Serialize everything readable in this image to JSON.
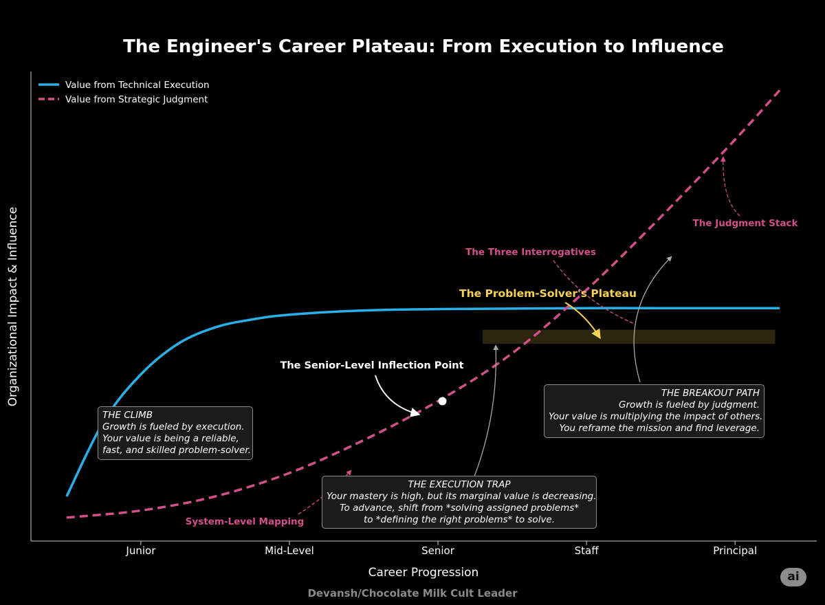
{
  "chart_data": {
    "type": "line",
    "title": "The Engineer's Career Plateau: From Execution to Influence",
    "xlabel": "Career Progression",
    "ylabel": "Organizational Impact & Influence",
    "categories": [
      "Junior",
      "Mid-Level",
      "Senior",
      "Staff",
      "Principal"
    ],
    "category_positions": [
      1,
      2,
      3,
      4,
      5
    ],
    "xlim": [
      0.26,
      5.55
    ],
    "ylim": [
      0,
      10
    ],
    "grid": false,
    "legend_position": "top-left",
    "series": [
      {
        "name": "Value from Technical Execution",
        "style": "solid",
        "color": "#2ab0e8",
        "x": [
          0.5,
          0.75,
          1.0,
          1.25,
          1.5,
          1.75,
          2.0,
          2.5,
          3.0,
          3.5,
          4.0,
          4.5,
          5.3
        ],
        "y": [
          0.95,
          2.55,
          3.55,
          4.2,
          4.55,
          4.72,
          4.82,
          4.91,
          4.94,
          4.95,
          4.96,
          4.96,
          4.96
        ]
      },
      {
        "name": "Value from Strategic Judgment",
        "style": "dashed",
        "color": "#d1508a",
        "x": [
          0.5,
          1.0,
          1.5,
          2.0,
          2.5,
          3.0,
          3.5,
          4.0,
          4.5,
          5.0,
          5.3
        ],
        "y": [
          0.5,
          0.65,
          0.95,
          1.45,
          2.15,
          2.98,
          4.0,
          5.35,
          6.9,
          8.55,
          9.6
        ]
      }
    ],
    "inflection_point": {
      "x": 3.03,
      "y": 2.98
    },
    "plateau_band": {
      "x": [
        3.3,
        5.27
      ],
      "y": [
        4.2,
        4.5
      ],
      "color": "#f7d154"
    },
    "annotations": {
      "inflection_label": "The Senior-Level Inflection Point",
      "plateau_label": "The Problem-Solver's Plateau",
      "three_interrogatives": "The Three Interrogatives",
      "judgment_stack": "The Judgment Stack",
      "system_mapping": "System-Level Mapping"
    },
    "boxes": {
      "climb": [
        "THE CLIMB",
        "Growth is fueled by execution.",
        "Your value is being a reliable,",
        "fast, and skilled problem-solver."
      ],
      "trap": [
        "THE EXECUTION TRAP",
        "Your mastery is high, but its marginal value is decreasing.",
        "To advance, shift from *solving assigned problems*",
        "to *defining the right problems* to solve."
      ],
      "breakout": [
        "THE BREAKOUT PATH",
        "Growth is fueled by judgment.",
        "Your value is multiplying the impact of others.",
        "You reframe the mission and find leverage."
      ]
    }
  },
  "credit": "Devansh/Chocolate Milk Cult Leader",
  "badge": "ai"
}
